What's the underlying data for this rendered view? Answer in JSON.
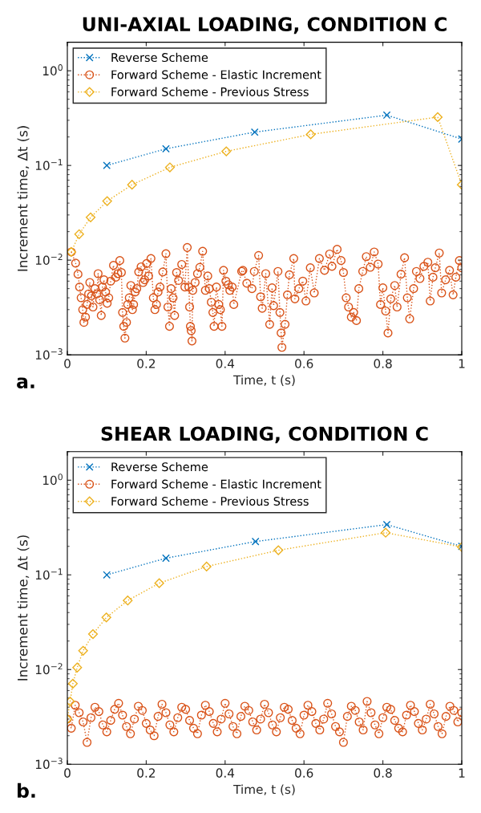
{
  "chart_data": [
    {
      "type": "line",
      "title": "UNI-AXIAL LOADING, CONDITION C",
      "xlabel": "Time, t (s)",
      "ylabel": "Increment time, Δt (s)",
      "annotations": [
        "a."
      ],
      "log": "y",
      "legend": "top left",
      "line_style": "dotted",
      "xlim": [
        0,
        1
      ],
      "xticks": [
        0,
        0.2,
        0.4,
        0.6,
        0.8,
        1
      ],
      "ylim": [
        0.001,
        2
      ],
      "yticks": [
        {
          "value": 0.001,
          "label": "10$^{−3}$"
        },
        {
          "value": 0.01,
          "label": "10$^{−2}$"
        },
        {
          "value": 0.1,
          "label": "10$^{−1}$"
        },
        {
          "value": 1,
          "label": "10$^{0}$"
        }
      ],
      "series": [
        {
          "name": "Reverse Scheme",
          "color": "#0072bd",
          "marker": "cross",
          "x": [
            0.1,
            0.25,
            0.475,
            0.81,
            1.0
          ],
          "values": [
            0.1,
            0.15,
            0.225,
            0.34,
            0.19
          ]
        },
        {
          "name": "Forward Scheme - Elastic Increment",
          "color": "#d95319",
          "marker": "circle",
          "x": [
            0.01,
            0.021,
            0.027,
            0.031,
            0.035,
            0.039,
            0.042,
            0.046,
            0.05,
            0.054,
            0.057,
            0.061,
            0.065,
            0.07,
            0.075,
            0.078,
            0.082,
            0.086,
            0.089,
            0.093,
            0.097,
            0.101,
            0.105,
            0.11,
            0.117,
            0.123,
            0.128,
            0.133,
            0.137,
            0.14,
            0.143,
            0.146,
            0.15,
            0.153,
            0.157,
            0.161,
            0.165,
            0.168,
            0.172,
            0.176,
            0.181,
            0.187,
            0.192,
            0.196,
            0.201,
            0.206,
            0.212,
            0.218,
            0.222,
            0.226,
            0.23,
            0.235,
            0.242,
            0.25,
            0.255,
            0.259,
            0.263,
            0.268,
            0.272,
            0.277,
            0.282,
            0.29,
            0.298,
            0.304,
            0.308,
            0.31,
            0.312,
            0.314,
            0.316,
            0.318,
            0.324,
            0.33,
            0.336,
            0.343,
            0.35,
            0.356,
            0.36,
            0.365,
            0.369,
            0.372,
            0.378,
            0.384,
            0.388,
            0.392,
            0.396,
            0.402,
            0.408,
            0.412,
            0.418,
            0.422,
            0.442,
            0.445,
            0.455,
            0.468,
            0.474,
            0.485,
            0.49,
            0.494,
            0.503,
            0.513,
            0.519,
            0.523,
            0.534,
            0.539,
            0.542,
            0.544,
            0.552,
            0.558,
            0.563,
            0.574,
            0.577,
            0.587,
            0.597,
            0.605,
            0.616,
            0.626,
            0.639,
            0.652,
            0.665,
            0.671,
            0.684,
            0.694,
            0.7,
            0.707,
            0.713,
            0.72,
            0.726,
            0.733,
            0.739,
            0.749,
            0.758,
            0.768,
            0.778,
            0.788,
            0.794,
            0.8,
            0.807,
            0.813,
            0.82,
            0.83,
            0.836,
            0.846,
            0.855,
            0.862,
            0.868,
            0.878,
            0.885,
            0.894,
            0.904,
            0.914,
            0.92,
            0.927,
            0.933,
            0.943,
            0.949,
            0.959,
            0.969,
            0.978,
            0.985,
            0.994,
            1.0
          ],
          "values": [
            0.0122,
            0.0093,
            0.0071,
            0.0052,
            0.004,
            0.003,
            0.0022,
            0.0025,
            0.0034,
            0.0044,
            0.0058,
            0.0042,
            0.0032,
            0.005,
            0.0044,
            0.0072,
            0.0038,
            0.0026,
            0.0052,
            0.0062,
            0.0046,
            0.0035,
            0.004,
            0.006,
            0.0088,
            0.0066,
            0.0072,
            0.0099,
            0.0074,
            0.0028,
            0.002,
            0.0015,
            0.0022,
            0.0034,
            0.004,
            0.0054,
            0.003,
            0.0034,
            0.0046,
            0.005,
            0.0075,
            0.0085,
            0.0058,
            0.0062,
            0.0092,
            0.0068,
            0.0104,
            0.004,
            0.003,
            0.0034,
            0.0046,
            0.0052,
            0.0075,
            0.0117,
            0.0032,
            0.002,
            0.005,
            0.004,
            0.0026,
            0.0074,
            0.0061,
            0.009,
            0.0052,
            0.0136,
            0.0052,
            0.0032,
            0.002,
            0.0018,
            0.0014,
            0.0048,
            0.0058,
            0.0072,
            0.0084,
            0.0124,
            0.0048,
            0.0068,
            0.005,
            0.0036,
            0.0028,
            0.002,
            0.0052,
            0.0034,
            0.003,
            0.002,
            0.0078,
            0.006,
            0.0055,
            0.0048,
            0.0052,
            0.0034,
            0.0076,
            0.0078,
            0.0057,
            0.005,
            0.0076,
            0.0112,
            0.0041,
            0.0031,
            0.0072,
            0.0021,
            0.0051,
            0.0033,
            0.0076,
            0.0028,
            0.0017,
            0.0012,
            0.0021,
            0.0043,
            0.007,
            0.0104,
            0.0039,
            0.005,
            0.006,
            0.0037,
            0.0083,
            0.0045,
            0.0104,
            0.0078,
            0.0116,
            0.0086,
            0.013,
            0.0099,
            0.0074,
            0.004,
            0.0032,
            0.0025,
            0.0028,
            0.0023,
            0.005,
            0.0076,
            0.0109,
            0.0084,
            0.0122,
            0.0091,
            0.0034,
            0.0051,
            0.0029,
            0.0017,
            0.0039,
            0.0054,
            0.0032,
            0.0071,
            0.0106,
            0.004,
            0.0024,
            0.005,
            0.0076,
            0.0064,
            0.0086,
            0.0095,
            0.0037,
            0.0066,
            0.0083,
            0.0119,
            0.0045,
            0.0062,
            0.0078,
            0.0043,
            0.0066,
            0.0099,
            0.0083
          ]
        },
        {
          "name": "Forward Scheme - Previous Stress",
          "color": "#edb120",
          "marker": "diamond",
          "x": [
            0.01,
            0.03,
            0.059,
            0.101,
            0.164,
            0.26,
            0.403,
            0.617,
            0.939,
            1.0
          ],
          "values": [
            0.0122,
            0.0188,
            0.0283,
            0.042,
            0.0626,
            0.0955,
            0.141,
            0.213,
            0.324,
            0.0626
          ]
        }
      ]
    },
    {
      "type": "line",
      "title": "SHEAR LOADING, CONDITION C",
      "xlabel": "Time, t (s)",
      "ylabel": "Increment time, Δt (s)",
      "annotations": [
        "b."
      ],
      "log": "y",
      "legend": "top left",
      "line_style": "dotted",
      "xlim": [
        0,
        1
      ],
      "xticks": [
        0,
        0.2,
        0.4,
        0.6,
        0.8,
        1
      ],
      "ylim": [
        0.001,
        2
      ],
      "yticks": [
        {
          "value": 0.001,
          "label": "10$^{−3}$"
        },
        {
          "value": 0.01,
          "label": "10$^{−2}$"
        },
        {
          "value": 0.1,
          "label": "10$^{−1}$"
        },
        {
          "value": 1,
          "label": "10$^{0}$"
        }
      ],
      "series": [
        {
          "name": "Reverse Scheme",
          "color": "#0072bd",
          "marker": "cross",
          "x": [
            0.1,
            0.25,
            0.477,
            0.81,
            1.0
          ],
          "values": [
            0.1,
            0.15,
            0.225,
            0.34,
            0.2
          ]
        },
        {
          "name": "Forward Scheme - Elastic Increment",
          "color": "#d95319",
          "marker": "circle",
          "x": [
            0.0,
            0.01,
            0.02,
            0.03,
            0.04,
            0.05,
            0.06,
            0.07,
            0.08,
            0.09,
            0.1,
            0.11,
            0.12,
            0.13,
            0.14,
            0.15,
            0.16,
            0.17,
            0.18,
            0.19,
            0.2,
            0.21,
            0.22,
            0.23,
            0.24,
            0.25,
            0.26,
            0.27,
            0.28,
            0.29,
            0.3,
            0.31,
            0.32,
            0.33,
            0.34,
            0.35,
            0.36,
            0.37,
            0.38,
            0.39,
            0.4,
            0.41,
            0.42,
            0.43,
            0.44,
            0.45,
            0.46,
            0.47,
            0.48,
            0.49,
            0.5,
            0.51,
            0.52,
            0.53,
            0.54,
            0.55,
            0.56,
            0.57,
            0.58,
            0.59,
            0.6,
            0.61,
            0.62,
            0.63,
            0.64,
            0.65,
            0.66,
            0.67,
            0.68,
            0.69,
            0.7,
            0.71,
            0.72,
            0.73,
            0.74,
            0.75,
            0.76,
            0.77,
            0.78,
            0.79,
            0.8,
            0.81,
            0.82,
            0.83,
            0.84,
            0.85,
            0.86,
            0.87,
            0.88,
            0.89,
            0.9,
            0.91,
            0.92,
            0.93,
            0.94,
            0.95,
            0.96,
            0.97,
            0.98,
            0.99,
            1.0
          ],
          "values": [
            0.003,
            0.0024,
            0.0042,
            0.0035,
            0.0028,
            0.0017,
            0.0031,
            0.004,
            0.0036,
            0.0026,
            0.0022,
            0.0029,
            0.0038,
            0.0044,
            0.0033,
            0.0025,
            0.0021,
            0.003,
            0.0041,
            0.0037,
            0.0027,
            0.0023,
            0.002,
            0.0032,
            0.0043,
            0.0035,
            0.0026,
            0.0022,
            0.0031,
            0.004,
            0.0038,
            0.0029,
            0.0024,
            0.0021,
            0.0033,
            0.0042,
            0.0036,
            0.0027,
            0.0022,
            0.003,
            0.0044,
            0.0034,
            0.0025,
            0.0021,
            0.0032,
            0.0041,
            0.0037,
            0.0028,
            0.0023,
            0.003,
            0.0043,
            0.0035,
            0.0026,
            0.0022,
            0.0031,
            0.004,
            0.0038,
            0.0029,
            0.0024,
            0.0021,
            0.0033,
            0.0042,
            0.0036,
            0.0027,
            0.0023,
            0.003,
            0.0044,
            0.0034,
            0.0025,
            0.0022,
            0.0017,
            0.0032,
            0.0041,
            0.0037,
            0.0028,
            0.0023,
            0.0046,
            0.0035,
            0.0026,
            0.0021,
            0.0031,
            0.004,
            0.0038,
            0.0029,
            0.0024,
            0.0022,
            0.0033,
            0.0042,
            0.0036,
            0.0027,
            0.0023,
            0.003,
            0.0043,
            0.0034,
            0.0025,
            0.0021,
            0.0032,
            0.0041,
            0.0037,
            0.0028,
            0.0035
          ]
        },
        {
          "name": "Forward Scheme - Previous Stress",
          "color": "#edb120",
          "marker": "diamond",
          "x": [
            0.0,
            0.007,
            0.014,
            0.025,
            0.04,
            0.065,
            0.099,
            0.153,
            0.233,
            0.353,
            0.535,
            0.807,
            1.0
          ],
          "values": [
            0.003,
            0.0046,
            0.0071,
            0.0105,
            0.0158,
            0.0237,
            0.0355,
            0.0536,
            0.0817,
            0.1225,
            0.182,
            0.279,
            0.197
          ]
        }
      ]
    }
  ]
}
